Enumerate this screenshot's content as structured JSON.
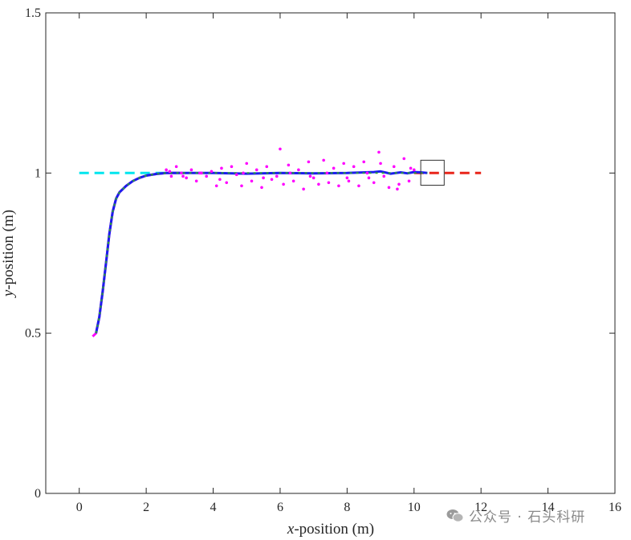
{
  "chart_data": {
    "type": "line",
    "title": "",
    "xlabel_italic": "x",
    "xlabel_rest": "-position (m)",
    "ylabel_italic": "y",
    "ylabel_rest": "-position (m)",
    "xlim": [
      -1,
      16
    ],
    "ylim": [
      0,
      1.5
    ],
    "xticks": [
      0,
      2,
      4,
      6,
      8,
      10,
      12,
      14,
      16
    ],
    "yticks": [
      0,
      0.5,
      1,
      1.5
    ],
    "grid": false,
    "series": [
      {
        "color": "#00e5ee",
        "style": "dashed",
        "x": [
          0,
          3
        ],
        "y": [
          1,
          1
        ]
      },
      {
        "color": "#e8251a",
        "style": "dashed",
        "x": [
          10,
          12
        ],
        "y": [
          1,
          1
        ]
      },
      {
        "color": "#ff00ff",
        "style": "solid",
        "x": [
          0.4,
          0.5,
          0.6,
          0.7,
          0.8,
          0.9,
          1.0,
          1.1,
          1.2,
          1.4,
          1.6,
          1.8,
          2.0,
          2.3,
          2.6,
          3.0
        ],
        "y": [
          0.49,
          0.5,
          0.55,
          0.63,
          0.72,
          0.81,
          0.88,
          0.92,
          0.94,
          0.96,
          0.975,
          0.985,
          0.992,
          0.997,
          1.0,
          1.0
        ]
      },
      {
        "color": "#1b1bf0",
        "style": "solid",
        "x": [
          0.5,
          0.6,
          0.7,
          0.8,
          0.9,
          1.0,
          1.1,
          1.2,
          1.4,
          1.6,
          1.8,
          2.0,
          2.3,
          2.6,
          3.0,
          3.5,
          4.0,
          5.0,
          6.0,
          7.0,
          8.0,
          8.8,
          9.0,
          9.3,
          9.6,
          9.8,
          10.0,
          10.2,
          10.4
        ],
        "y": [
          0.5,
          0.55,
          0.63,
          0.72,
          0.81,
          0.88,
          0.92,
          0.94,
          0.96,
          0.975,
          0.985,
          0.992,
          0.997,
          1.0,
          1.0,
          1.0,
          1.0,
          0.998,
          1.0,
          0.999,
          1.0,
          1.003,
          1.005,
          0.998,
          1.002,
          0.999,
          1.003,
          1.002,
          1.0
        ]
      },
      {
        "color": "#2e9e3a",
        "style": "dotted",
        "x": [
          0.5,
          0.6,
          0.7,
          0.8,
          0.9,
          1.0,
          1.1,
          1.2,
          1.4,
          1.6,
          1.8,
          2.0,
          2.3,
          2.6,
          3.0,
          4.0,
          5.0,
          6.0,
          7.0,
          8.0,
          9.0,
          10.0,
          10.4
        ],
        "y": [
          0.5,
          0.55,
          0.63,
          0.72,
          0.81,
          0.88,
          0.92,
          0.94,
          0.96,
          0.975,
          0.985,
          0.992,
          0.997,
          1.0,
          1.0,
          1.0,
          1.0,
          1.0,
          1.0,
          1.0,
          1.0,
          1.0,
          1.0
        ]
      }
    ],
    "scatter": {
      "color": "#ff00ff",
      "x": [
        2.6,
        2.75,
        2.9,
        3.05,
        3.2,
        3.35,
        3.5,
        3.65,
        3.8,
        3.95,
        4.1,
        4.25,
        4.4,
        4.55,
        4.7,
        4.85,
        5.0,
        5.15,
        5.3,
        5.45,
        5.6,
        5.75,
        5.9,
        6.0,
        6.1,
        6.25,
        6.4,
        6.55,
        6.7,
        6.85,
        7.0,
        7.15,
        7.3,
        7.45,
        7.6,
        7.75,
        7.9,
        8.05,
        8.2,
        8.35,
        8.5,
        8.65,
        8.8,
        8.95,
        9.1,
        9.25,
        9.4,
        9.55,
        9.7,
        9.85,
        10.0,
        2.7,
        3.1,
        3.6,
        4.2,
        4.9,
        5.5,
        6.3,
        6.9,
        7.4,
        8.0,
        8.6,
        9.0,
        9.5,
        9.9
      ],
      "y": [
        1.01,
        0.99,
        1.02,
        1.0,
        0.985,
        1.01,
        0.975,
        1.0,
        0.99,
        1.005,
        0.96,
        1.015,
        0.97,
        1.02,
        0.995,
        0.96,
        1.03,
        0.975,
        1.01,
        0.955,
        1.02,
        0.98,
        0.99,
        1.075,
        0.965,
        1.025,
        0.975,
        1.01,
        0.95,
        1.035,
        0.985,
        0.965,
        1.04,
        0.97,
        1.015,
        0.96,
        1.03,
        0.975,
        1.02,
        0.96,
        1.035,
        0.985,
        0.97,
        1.065,
        0.99,
        0.955,
        1.02,
        0.965,
        1.045,
        0.975,
        1.01,
        1.005,
        0.99,
        1.0,
        0.98,
        1.0,
        0.985,
        1.0,
        0.99,
        1.0,
        0.985,
        1.0,
        1.03,
        0.95,
        1.015
      ]
    },
    "inset_box": {
      "x": [
        10.2,
        10.9
      ],
      "y": [
        0.962,
        1.04
      ]
    }
  },
  "watermark": {
    "text": "公众号 · 石头科研",
    "icon": "wechat-icon"
  }
}
